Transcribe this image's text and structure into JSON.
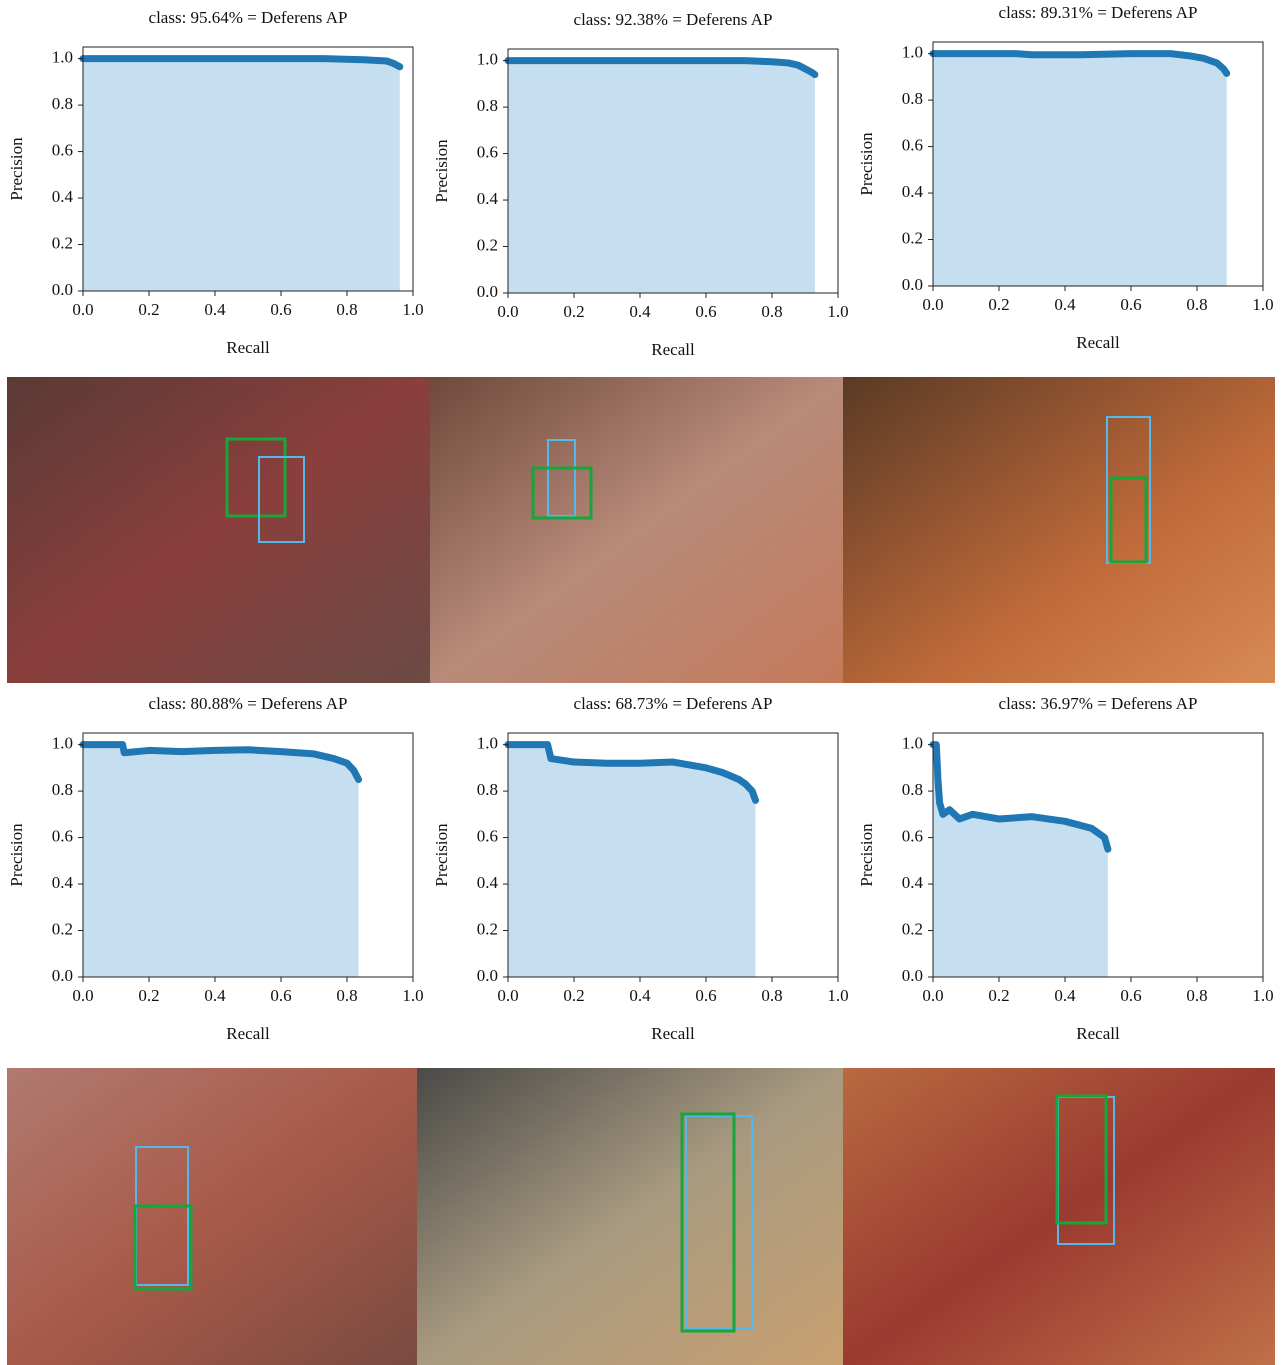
{
  "chart_data": [
    {
      "type": "area",
      "title": "class: 95.64% = Deferens AP",
      "x_label": "Recall",
      "y_label": "Precision",
      "color": "#1f77b4",
      "fill_color": "#c6dff0",
      "x": [
        0,
        0.2,
        0.4,
        0.6,
        0.73,
        0.85,
        0.92,
        0.94,
        0.96
      ],
      "values": [
        1,
        1,
        1,
        1,
        1,
        0.995,
        0.99,
        0.98,
        0.965
      ],
      "xlim": [
        0,
        1
      ],
      "ylim": [
        0,
        1.05
      ],
      "xticks": [
        {
          "value": 0,
          "label": "0.0"
        },
        0.2,
        0.4,
        0.6,
        0.8,
        {
          "value": 1,
          "label": "1.0"
        }
      ],
      "yticks": [
        {
          "value": 0,
          "label": "0.0"
        },
        0.2,
        0.4,
        0.6,
        0.8,
        {
          "value": 1,
          "label": "1.0"
        }
      ]
    },
    {
      "type": "area",
      "title": "class: 92.38% = Deferens AP",
      "x_label": "Recall",
      "y_label": "Precision",
      "color": "#1f77b4",
      "fill_color": "#c6dff0",
      "x": [
        0,
        0.2,
        0.4,
        0.6,
        0.72,
        0.8,
        0.85,
        0.88,
        0.9,
        0.92,
        0.93
      ],
      "values": [
        1,
        1,
        1,
        1,
        1,
        0.995,
        0.99,
        0.98,
        0.965,
        0.95,
        0.94
      ],
      "xlim": [
        0,
        1
      ],
      "ylim": [
        0,
        1.05
      ],
      "xticks": [
        {
          "value": 0,
          "label": "0.0"
        },
        0.2,
        0.4,
        0.6,
        0.8,
        {
          "value": 1,
          "label": "1.0"
        }
      ],
      "yticks": [
        {
          "value": 0,
          "label": "0.0"
        },
        0.2,
        0.4,
        0.6,
        0.8,
        {
          "value": 1,
          "label": "1.0"
        }
      ]
    },
    {
      "type": "area",
      "title": "class: 89.31% = Deferens AP",
      "x_label": "Recall",
      "y_label": "Precision",
      "color": "#1f77b4",
      "fill_color": "#c6dff0",
      "x": [
        0,
        0.25,
        0.3,
        0.45,
        0.6,
        0.72,
        0.78,
        0.82,
        0.86,
        0.88,
        0.89
      ],
      "values": [
        1,
        1,
        0.995,
        0.995,
        1,
        1,
        0.99,
        0.98,
        0.96,
        0.935,
        0.915
      ],
      "xlim": [
        0,
        1
      ],
      "ylim": [
        0,
        1.05
      ],
      "xticks": [
        {
          "value": 0,
          "label": "0.0"
        },
        0.2,
        0.4,
        0.6,
        0.8,
        {
          "value": 1,
          "label": "1.0"
        }
      ],
      "yticks": [
        {
          "value": 0,
          "label": "0.0"
        },
        0.2,
        0.4,
        0.6,
        0.8,
        {
          "value": 1,
          "label": "1.0"
        }
      ]
    },
    {
      "type": "area",
      "title": "class: 80.88% = Deferens AP",
      "x_label": "Recall",
      "y_label": "Precision",
      "color": "#1f77b4",
      "fill_color": "#c6dff0",
      "x": [
        0,
        0.12,
        0.125,
        0.2,
        0.3,
        0.4,
        0.5,
        0.6,
        0.7,
        0.76,
        0.8,
        0.82,
        0.835
      ],
      "values": [
        1,
        1,
        0.965,
        0.975,
        0.97,
        0.975,
        0.978,
        0.97,
        0.96,
        0.94,
        0.92,
        0.89,
        0.85
      ],
      "xlim": [
        0,
        1
      ],
      "ylim": [
        0,
        1.05
      ],
      "xticks": [
        {
          "value": 0,
          "label": "0.0"
        },
        0.2,
        0.4,
        0.6,
        0.8,
        {
          "value": 1,
          "label": "1.0"
        }
      ],
      "yticks": [
        {
          "value": 0,
          "label": "0.0"
        },
        0.2,
        0.4,
        0.6,
        0.8,
        {
          "value": 1,
          "label": "1.0"
        }
      ]
    },
    {
      "type": "area",
      "title": "class: 68.73% = Deferens AP",
      "x_label": "Recall",
      "y_label": "Precision",
      "color": "#1f77b4",
      "fill_color": "#c6dff0",
      "x": [
        0,
        0.12,
        0.13,
        0.2,
        0.3,
        0.4,
        0.5,
        0.6,
        0.65,
        0.7,
        0.72,
        0.74,
        0.75
      ],
      "values": [
        1,
        1,
        0.94,
        0.925,
        0.92,
        0.92,
        0.925,
        0.9,
        0.88,
        0.85,
        0.83,
        0.8,
        0.76
      ],
      "xlim": [
        0,
        1
      ],
      "ylim": [
        0,
        1.05
      ],
      "xticks": [
        {
          "value": 0,
          "label": "0.0"
        },
        0.2,
        0.4,
        0.6,
        0.8,
        {
          "value": 1,
          "label": "1.0"
        }
      ],
      "yticks": [
        {
          "value": 0,
          "label": "0.0"
        },
        0.2,
        0.4,
        0.6,
        0.8,
        {
          "value": 1,
          "label": "1.0"
        }
      ]
    },
    {
      "type": "area",
      "title": "class: 36.97% = Deferens AP",
      "x_label": "Recall",
      "y_label": "Precision",
      "color": "#1f77b4",
      "fill_color": "#c6dff0",
      "x": [
        0,
        0.01,
        0.015,
        0.02,
        0.03,
        0.05,
        0.08,
        0.12,
        0.2,
        0.3,
        0.4,
        0.48,
        0.52,
        0.53
      ],
      "values": [
        1,
        1,
        0.85,
        0.75,
        0.7,
        0.72,
        0.68,
        0.7,
        0.68,
        0.69,
        0.67,
        0.64,
        0.6,
        0.55
      ],
      "xlim": [
        0,
        1
      ],
      "ylim": [
        0,
        1.05
      ],
      "xticks": [
        {
          "value": 0,
          "label": "0.0"
        },
        0.2,
        0.4,
        0.6,
        0.8,
        {
          "value": 1,
          "label": "1.0"
        }
      ],
      "yticks": [
        {
          "value": 0,
          "label": "0.0"
        },
        0.2,
        0.4,
        0.6,
        0.8,
        {
          "value": 1,
          "label": "1.0"
        }
      ]
    }
  ]
}
